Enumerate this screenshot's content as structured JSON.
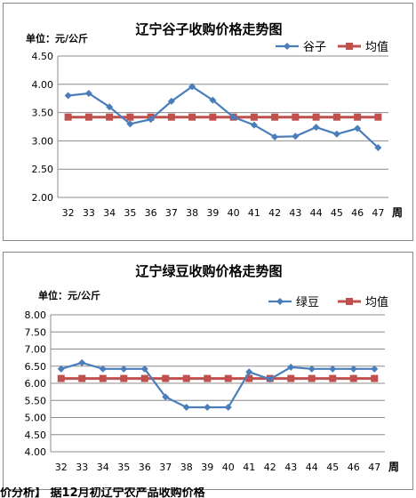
{
  "chart_data": [
    {
      "type": "line",
      "title": "辽宁谷子收购价格走势图",
      "unit_label": "单位：元/公斤",
      "xlabel": "周",
      "ylim": [
        2.0,
        4.5
      ],
      "yticks": [
        "2.00",
        "2.50",
        "3.00",
        "3.50",
        "4.00",
        "4.50"
      ],
      "categories": [
        "32",
        "33",
        "34",
        "35",
        "36",
        "37",
        "38",
        "39",
        "40",
        "41",
        "42",
        "43",
        "44",
        "45",
        "46",
        "47"
      ],
      "grid": true,
      "legend_position": "top-right",
      "series": [
        {
          "name": "谷子",
          "color": "#4a7ebb",
          "marker": "diamond",
          "values": [
            3.8,
            3.84,
            3.6,
            3.3,
            3.38,
            3.7,
            3.96,
            3.72,
            3.42,
            3.28,
            3.07,
            3.08,
            3.24,
            3.12,
            3.22,
            2.88
          ]
        },
        {
          "name": "均值",
          "color": "#c0504d",
          "marker": "square",
          "values": [
            3.42,
            3.42,
            3.42,
            3.42,
            3.42,
            3.42,
            3.42,
            3.42,
            3.42,
            3.42,
            3.42,
            3.42,
            3.42,
            3.42,
            3.42,
            3.42
          ]
        }
      ]
    },
    {
      "type": "line",
      "title": "辽宁绿豆收购价格走势图",
      "unit_label": "单位：元/公斤",
      "xlabel": "周",
      "ylim": [
        4.0,
        8.0
      ],
      "yticks": [
        "4.00",
        "4.50",
        "5.00",
        "5.50",
        "6.00",
        "6.50",
        "7.00",
        "7.50",
        "8.00"
      ],
      "categories": [
        "32",
        "33",
        "34",
        "35",
        "36",
        "37",
        "38",
        "39",
        "40",
        "41",
        "42",
        "43",
        "44",
        "45",
        "46",
        "47"
      ],
      "grid": true,
      "legend_position": "top-right",
      "series": [
        {
          "name": "绿豆",
          "color": "#4a7ebb",
          "marker": "diamond",
          "values": [
            6.42,
            6.6,
            6.42,
            6.42,
            6.42,
            5.6,
            5.3,
            5.3,
            5.3,
            6.33,
            6.12,
            6.47,
            6.42,
            6.42,
            6.42,
            6.42
          ]
        },
        {
          "name": "均值",
          "color": "#c0504d",
          "marker": "square",
          "values": [
            6.14,
            6.14,
            6.14,
            6.14,
            6.14,
            6.14,
            6.14,
            6.14,
            6.14,
            6.14,
            6.14,
            6.14,
            6.14,
            6.14,
            6.14,
            6.14
          ]
        }
      ]
    }
  ],
  "footer": {
    "text": "价分析】 据12月初辽宁农产品收购价格"
  }
}
